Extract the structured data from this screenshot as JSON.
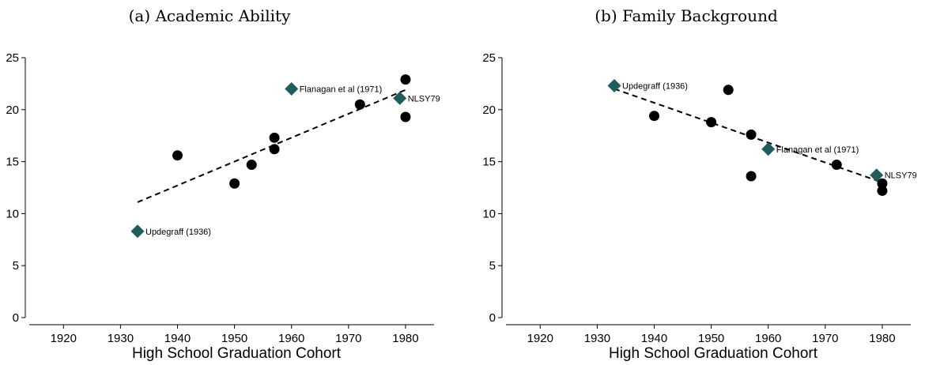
{
  "colors": {
    "marker_circle": "#000000",
    "marker_diamond": "#1f5c5c"
  },
  "chart_data": [
    {
      "type": "scatter",
      "title": "(a) Academic Ability",
      "xlabel": "High School Graduation Cohort",
      "ylabel": "",
      "xlim": [
        1914,
        1985
      ],
      "ylim": [
        0,
        25
      ],
      "xticks": [
        1920,
        1930,
        1940,
        1950,
        1960,
        1970,
        1980
      ],
      "yticks": [
        0,
        5,
        10,
        15,
        20,
        25
      ],
      "grid": false,
      "points": [
        {
          "x": 1940,
          "y": 15.6
        },
        {
          "x": 1950,
          "y": 12.9
        },
        {
          "x": 1953,
          "y": 14.7
        },
        {
          "x": 1957,
          "y": 17.3
        },
        {
          "x": 1957,
          "y": 16.2
        },
        {
          "x": 1972,
          "y": 20.5
        },
        {
          "x": 1980,
          "y": 22.9
        },
        {
          "x": 1980,
          "y": 19.3
        }
      ],
      "highlighted": [
        {
          "x": 1933,
          "y": 8.3,
          "label": "Updegraff (1936)"
        },
        {
          "x": 1960,
          "y": 22.0,
          "label": "Flanagan et al (1971)"
        },
        {
          "x": 1979,
          "y": 21.1,
          "label": "NLSY79"
        }
      ],
      "trendline": {
        "x": [
          1933,
          1980
        ],
        "y": [
          11.1,
          21.9
        ]
      }
    },
    {
      "type": "scatter",
      "title": "(b) Family Background",
      "xlabel": "High School Graduation Cohort",
      "ylabel": "",
      "xlim": [
        1914,
        1985
      ],
      "ylim": [
        0,
        25
      ],
      "xticks": [
        1920,
        1930,
        1940,
        1950,
        1960,
        1970,
        1980
      ],
      "yticks": [
        0,
        5,
        10,
        15,
        20,
        25
      ],
      "grid": false,
      "points": [
        {
          "x": 1940,
          "y": 19.4
        },
        {
          "x": 1950,
          "y": 18.8
        },
        {
          "x": 1953,
          "y": 21.9
        },
        {
          "x": 1957,
          "y": 17.6
        },
        {
          "x": 1957,
          "y": 13.6
        },
        {
          "x": 1972,
          "y": 14.7
        },
        {
          "x": 1980,
          "y": 12.9
        },
        {
          "x": 1980,
          "y": 12.2
        }
      ],
      "highlighted": [
        {
          "x": 1933,
          "y": 22.3,
          "label": "Updegraff (1936)"
        },
        {
          "x": 1960,
          "y": 16.2,
          "label": "Flanagan et al (1971)"
        },
        {
          "x": 1979,
          "y": 13.7,
          "label": "NLSY79"
        }
      ],
      "trendline": {
        "x": [
          1933,
          1980
        ],
        "y": [
          22.0,
          13.0
        ]
      }
    }
  ]
}
